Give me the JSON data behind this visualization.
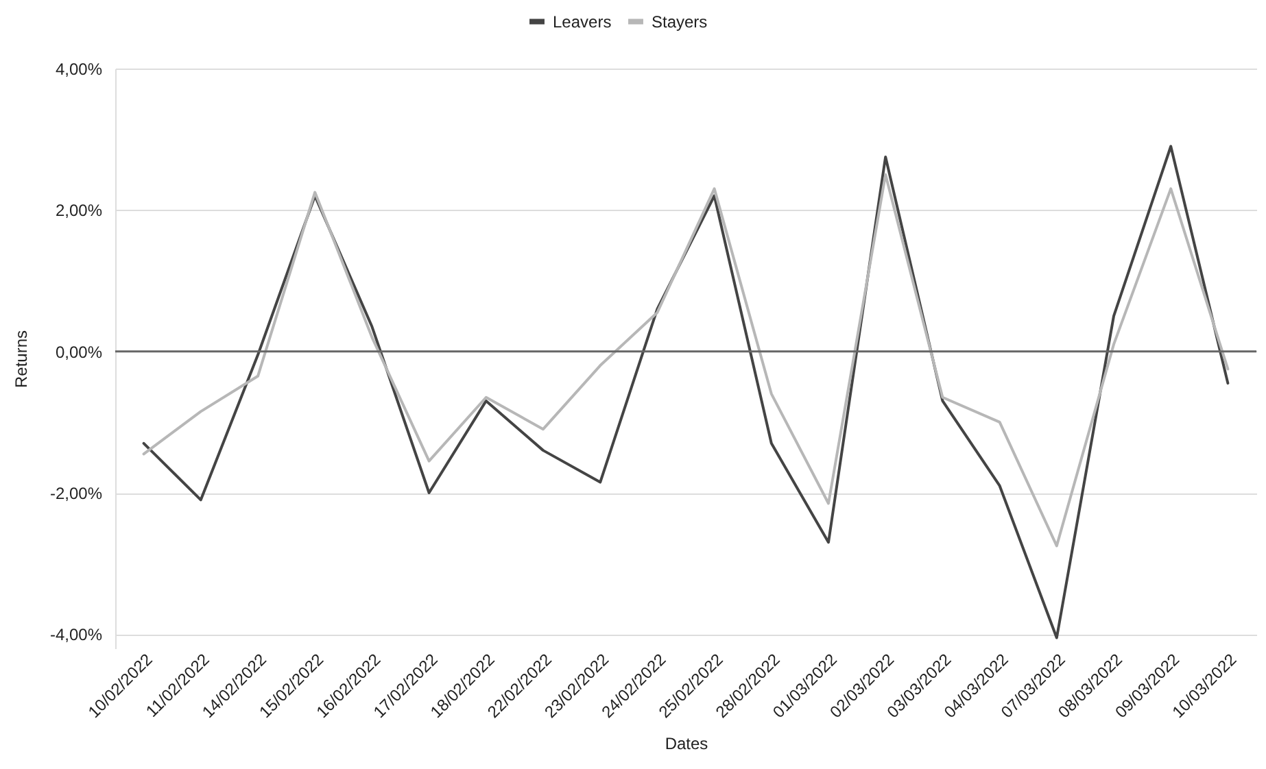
{
  "chart_data": {
    "type": "line",
    "xlabel": "Dates",
    "ylabel": "Returns",
    "categories": [
      "10/02/2022",
      "11/02/2022",
      "14/02/2022",
      "15/02/2022",
      "16/02/2022",
      "17/02/2022",
      "18/02/2022",
      "22/02/2022",
      "23/02/2022",
      "24/02/2022",
      "25/02/2022",
      "28/02/2022",
      "01/03/2022",
      "02/03/2022",
      "03/03/2022",
      "04/03/2022",
      "07/03/2022",
      "08/03/2022",
      "09/03/2022",
      "10/03/2022"
    ],
    "series": [
      {
        "name": "Leavers",
        "color": "#444444",
        "values": [
          -1.3,
          -2.1,
          -0.05,
          2.2,
          0.35,
          -2.0,
          -0.7,
          -1.4,
          -1.85,
          0.6,
          2.2,
          -1.3,
          -2.7,
          2.75,
          -0.7,
          -1.9,
          -4.05,
          0.5,
          2.9,
          -0.45
        ]
      },
      {
        "name": "Stayers",
        "color": "#b7b7b7",
        "values": [
          -1.45,
          -0.85,
          -0.35,
          2.25,
          0.2,
          -1.55,
          -0.65,
          -1.1,
          -0.2,
          0.55,
          2.3,
          -0.6,
          -2.15,
          2.5,
          -0.65,
          -1.0,
          -2.75,
          0.1,
          2.3,
          -0.25
        ]
      }
    ],
    "ylim": [
      -4.2,
      4
    ],
    "yticks": [
      {
        "value": -4,
        "label": "-4,00%"
      },
      {
        "value": -2,
        "label": "-2,00%"
      },
      {
        "value": 0,
        "label": "0,00%"
      },
      {
        "value": 2,
        "label": "2,00%"
      },
      {
        "value": 4,
        "label": "4,00%"
      }
    ],
    "ref_lines": [
      {
        "axis": "y",
        "value": 0,
        "color": "#666666"
      }
    ],
    "grid": "y",
    "legend": "top",
    "marker": "none",
    "line_style": "solid"
  }
}
